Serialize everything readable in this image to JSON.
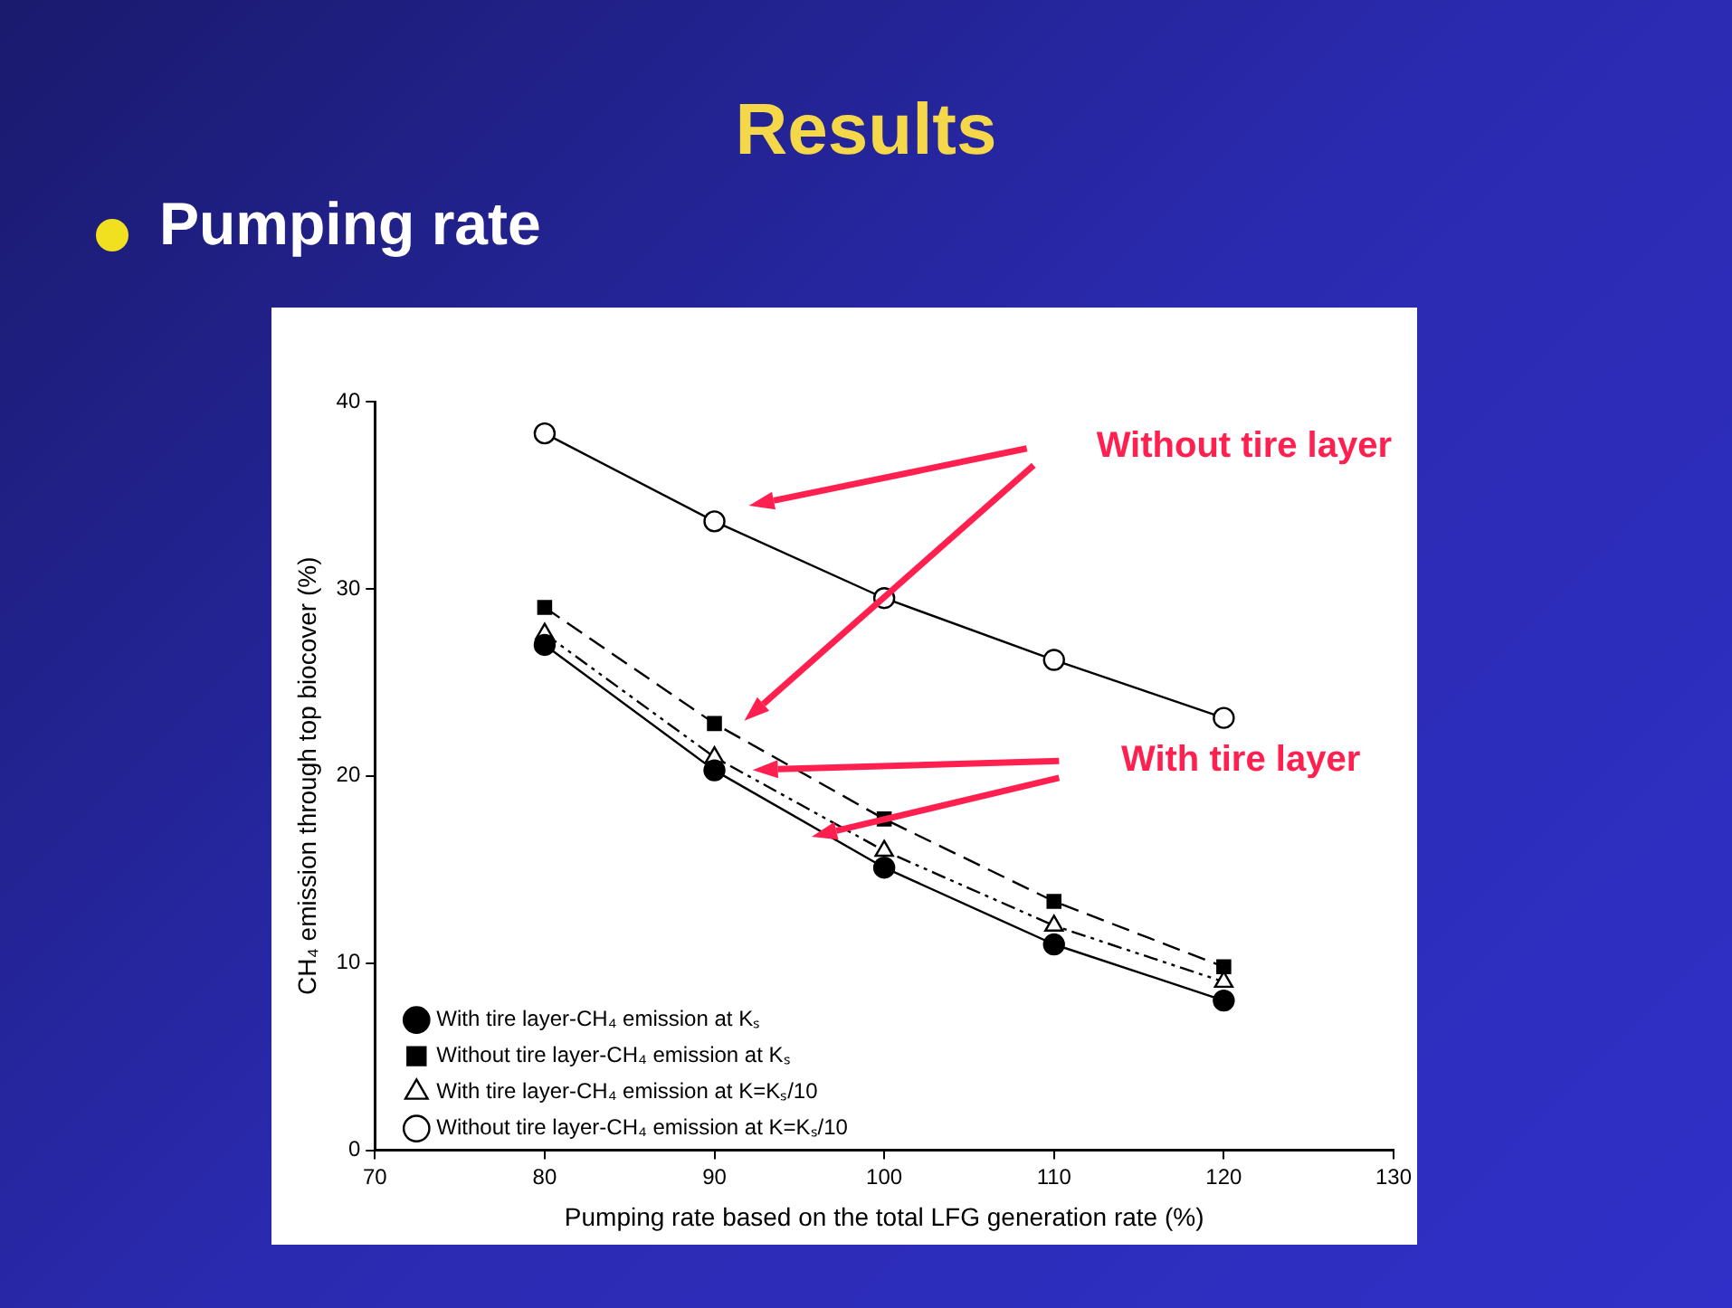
{
  "chart_data": {
    "type": "line",
    "title": "Results",
    "subtitle": "Pumping rate",
    "xlabel": "Pumping rate based on the total LFG generation rate (%)",
    "ylabel": "CH₄ emission through top biocover (%)",
    "x": [
      80,
      90,
      100,
      110,
      120
    ],
    "xlim": [
      70,
      130
    ],
    "xticks": [
      70,
      80,
      90,
      100,
      110,
      120,
      130
    ],
    "ylim": [
      0,
      40
    ],
    "yticks": [
      0,
      10,
      20,
      30,
      40
    ],
    "grid": false,
    "legend": "bottom left",
    "series": [
      {
        "name": "With tire layer-CH₄ emission at Kₛ",
        "color": "#000000",
        "marker": "circle",
        "line_style": "solid",
        "values": [
          27,
          20.3,
          15.1,
          11,
          8
        ]
      },
      {
        "name": "Without tire layer-CH₄ emission at Kₛ",
        "color": "#000000",
        "marker": "square",
        "line_style": "dashed",
        "values": [
          29,
          22.8,
          17.7,
          13.3,
          9.8
        ]
      },
      {
        "name": "With tire layer-CH₄ emission at K=Kₛ/10",
        "color": "#000000",
        "colors": [
          "#ffffff",
          "#ffffff",
          "#ffffff",
          "#ffffff",
          "#ffffff"
        ],
        "marker": "triangle",
        "line_style": "dotted",
        "values": [
          27.6,
          21,
          16,
          12,
          9
        ]
      },
      {
        "name": "Without tire layer-CH₄ emission at K=Kₛ/10",
        "color": "#000000",
        "colors": [
          "#ffffff",
          "#ffffff",
          "#ffffff",
          "#ffffff",
          "#ffffff"
        ],
        "marker": "circle",
        "line_style": "solid",
        "values": [
          38.3,
          33.6,
          29.5,
          26.2,
          23.1
        ]
      }
    ],
    "annotations": [
      "Without tire layer",
      "With tire layer"
    ]
  }
}
